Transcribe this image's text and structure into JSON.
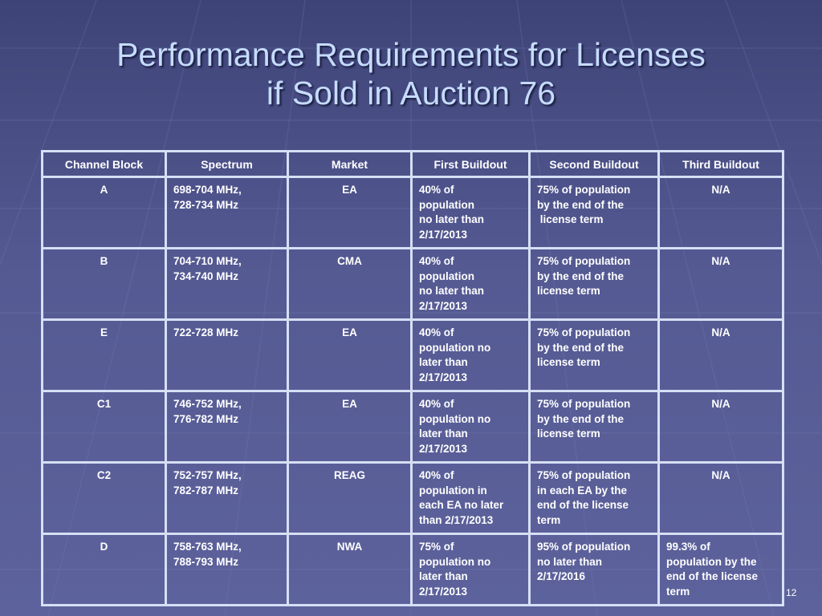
{
  "slide": {
    "title_line1": "Performance Requirements for Licenses",
    "title_line2": "if Sold in Auction 76",
    "page_number": "12",
    "title_color": "#c6dcff",
    "background_color": "#4a4f86"
  },
  "table": {
    "headers": [
      "Channel Block",
      "Spectrum",
      "Market",
      "First Buildout",
      "Second Buildout",
      "Third Buildout"
    ],
    "rows": [
      {
        "block": "A",
        "spectrum": [
          "698-704 MHz,",
          "728-734 MHz"
        ],
        "market": "EA",
        "first": [
          "40% of",
          "population",
          "no later than",
          "2/17/2013"
        ],
        "second": [
          "75% of population",
          "by the end of the",
          " license term"
        ],
        "third": [
          "N/A"
        ]
      },
      {
        "block": "B",
        "spectrum": [
          "704-710 MHz,",
          "734-740 MHz"
        ],
        "market": "CMA",
        "first": [
          "40% of",
          "population",
          "no later than",
          "2/17/2013"
        ],
        "second": [
          "75% of population",
          "by the end of the",
          "license term"
        ],
        "third": [
          "N/A"
        ]
      },
      {
        "block": "E",
        "spectrum": [
          "722-728 MHz"
        ],
        "market": "EA",
        "first": [
          "40% of",
          "population no",
          "later than",
          "2/17/2013"
        ],
        "second": [
          "75% of population",
          "by the end of the",
          "license term"
        ],
        "third": [
          "N/A"
        ]
      },
      {
        "block": "C1",
        "spectrum": [
          "746-752 MHz,",
          "776-782 MHz"
        ],
        "market": "EA",
        "first": [
          "40% of",
          "population no",
          "later than",
          "2/17/2013"
        ],
        "second": [
          "75% of population",
          "by the end of the",
          "license term"
        ],
        "third": [
          "N/A"
        ]
      },
      {
        "block": "C2",
        "spectrum": [
          "752-757 MHz,",
          "782-787 MHz"
        ],
        "market": "REAG",
        "first": [
          "40% of",
          "population in",
          "each EA no later",
          "than 2/17/2013"
        ],
        "second": [
          "75% of population",
          "in each EA by the",
          "end of the license",
          "term"
        ],
        "third": [
          "N/A"
        ]
      },
      {
        "block": "D",
        "spectrum": [
          "758-763 MHz,",
          "788-793 MHz"
        ],
        "market": "NWA",
        "first": [
          "75% of",
          "population no",
          "later than",
          "2/17/2013"
        ],
        "second": [
          "95% of population",
          "no later than",
          "2/17/2016"
        ],
        "third": [
          "99.3% of",
          "population by the",
          "end of the license",
          "term"
        ]
      }
    ]
  }
}
